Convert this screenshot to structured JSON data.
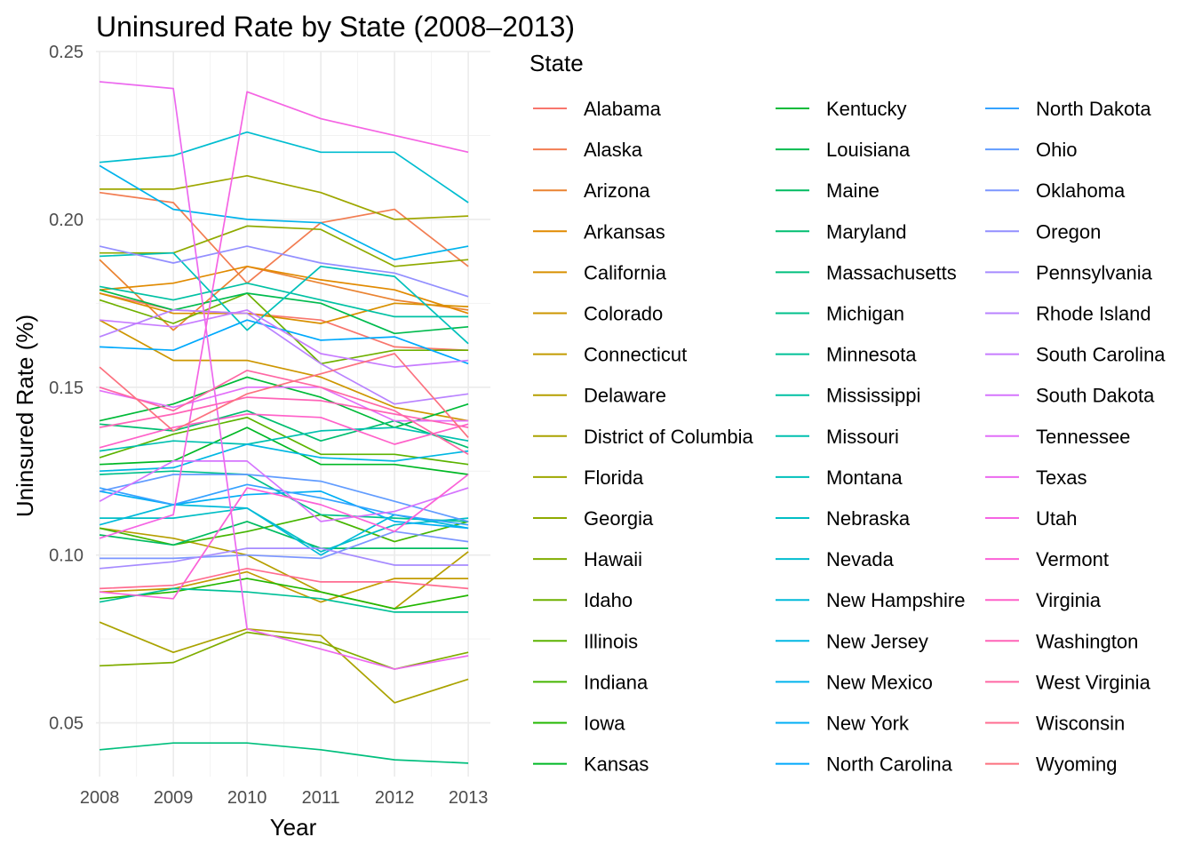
{
  "chart_data": {
    "type": "line",
    "title": "Uninsured Rate by State (2008–2013)",
    "xlabel": "Year",
    "ylabel": "Uninsured Rate (%)",
    "x": [
      2008,
      2009,
      2010,
      2011,
      2012,
      2013
    ],
    "x_ticks": [
      "2008",
      "2009",
      "2010",
      "2011",
      "2012",
      "2013"
    ],
    "y_ticks": [
      "0.05",
      "0.10",
      "0.15",
      "0.20",
      "0.25"
    ],
    "y_tick_values": [
      0.05,
      0.1,
      0.15,
      0.2,
      0.25
    ],
    "xlim": [
      2007.95,
      2013.3
    ],
    "ylim": [
      0.034,
      0.25
    ],
    "grid": true,
    "legend_title": "State",
    "legend_position": "right",
    "series": [
      {
        "name": "Alabama",
        "color": "#F8766D",
        "values": [
          0.178,
          0.173,
          0.172,
          0.17,
          0.162,
          0.161
        ]
      },
      {
        "name": "Alaska",
        "color": "#F27D52",
        "values": [
          0.208,
          0.205,
          0.181,
          0.199,
          0.203,
          0.186
        ]
      },
      {
        "name": "Arizona",
        "color": "#EA8331",
        "values": [
          0.188,
          0.167,
          0.186,
          0.181,
          0.176,
          0.173
        ]
      },
      {
        "name": "Arkansas",
        "color": "#E18A00",
        "values": [
          0.179,
          0.181,
          0.186,
          0.182,
          0.179,
          0.172
        ]
      },
      {
        "name": "California",
        "color": "#D89000",
        "values": [
          0.178,
          0.172,
          0.172,
          0.169,
          0.175,
          0.174
        ]
      },
      {
        "name": "Colorado",
        "color": "#CD9600",
        "values": [
          0.17,
          0.158,
          0.158,
          0.153,
          0.144,
          0.14
        ]
      },
      {
        "name": "Connecticut",
        "color": "#C29B00",
        "values": [
          0.089,
          0.09,
          0.095,
          0.086,
          0.093,
          0.093
        ]
      },
      {
        "name": "Delaware",
        "color": "#B69F00",
        "values": [
          0.108,
          0.105,
          0.1,
          0.089,
          0.084,
          0.101
        ]
      },
      {
        "name": "District of Columbia",
        "color": "#AAA300",
        "values": [
          0.08,
          0.071,
          0.078,
          0.076,
          0.056,
          0.063
        ]
      },
      {
        "name": "Florida",
        "color": "#9EA700",
        "values": [
          0.209,
          0.209,
          0.213,
          0.208,
          0.2,
          0.201
        ]
      },
      {
        "name": "Georgia",
        "color": "#8FAA00",
        "values": [
          0.19,
          0.19,
          0.198,
          0.197,
          0.186,
          0.188
        ]
      },
      {
        "name": "Hawaii",
        "color": "#80AD00",
        "values": [
          0.067,
          0.068,
          0.077,
          0.074,
          0.066,
          0.071
        ]
      },
      {
        "name": "Idaho",
        "color": "#6FB000",
        "values": [
          0.176,
          0.169,
          0.178,
          0.157,
          0.161,
          0.161
        ]
      },
      {
        "name": "Illinois",
        "color": "#5CB300",
        "values": [
          0.129,
          0.136,
          0.141,
          0.13,
          0.13,
          0.127
        ]
      },
      {
        "name": "Indiana",
        "color": "#45B500",
        "values": [
          0.108,
          0.103,
          0.107,
          0.112,
          0.104,
          0.11
        ]
      },
      {
        "name": "Iowa",
        "color": "#22B700",
        "values": [
          0.087,
          0.089,
          0.093,
          0.089,
          0.084,
          0.088
        ]
      },
      {
        "name": "Kansas",
        "color": "#00B825",
        "values": [
          0.127,
          0.128,
          0.138,
          0.127,
          0.127,
          0.124
        ]
      },
      {
        "name": "Kentucky",
        "color": "#00BA38",
        "values": [
          0.14,
          0.145,
          0.153,
          0.147,
          0.138,
          0.145
        ]
      },
      {
        "name": "Louisiana",
        "color": "#00BB4E",
        "values": [
          0.179,
          0.173,
          0.178,
          0.175,
          0.166,
          0.168
        ]
      },
      {
        "name": "Maine",
        "color": "#00BC61",
        "values": [
          0.106,
          0.103,
          0.11,
          0.102,
          0.102,
          0.102
        ]
      },
      {
        "name": "Maryland",
        "color": "#00BE70",
        "values": [
          0.139,
          0.137,
          0.143,
          0.134,
          0.14,
          0.132
        ]
      },
      {
        "name": "Massachusetts",
        "color": "#00BF7D",
        "values": [
          0.042,
          0.044,
          0.044,
          0.042,
          0.039,
          0.038
        ]
      },
      {
        "name": "Michigan",
        "color": "#00C08B",
        "values": [
          0.124,
          0.125,
          0.124,
          0.112,
          0.111,
          0.11
        ]
      },
      {
        "name": "Minnesota",
        "color": "#00C098",
        "values": [
          0.086,
          0.09,
          0.089,
          0.087,
          0.083,
          0.083
        ]
      },
      {
        "name": "Mississippi",
        "color": "#00C1A4",
        "values": [
          0.18,
          0.176,
          0.181,
          0.176,
          0.171,
          0.171
        ]
      },
      {
        "name": "Missouri",
        "color": "#00C0AF",
        "values": [
          0.131,
          0.134,
          0.133,
          0.137,
          0.138,
          0.134
        ]
      },
      {
        "name": "Montana",
        "color": "#00C0BB",
        "values": [
          0.189,
          0.19,
          0.167,
          0.186,
          0.183,
          0.163
        ]
      },
      {
        "name": "Nebraska",
        "color": "#00BEC5",
        "values": [
          0.111,
          0.111,
          0.114,
          0.101,
          0.109,
          0.111
        ]
      },
      {
        "name": "Nevada",
        "color": "#00BDD0",
        "values": [
          0.217,
          0.219,
          0.226,
          0.22,
          0.22,
          0.205
        ]
      },
      {
        "name": "New Hampshire",
        "color": "#00BADA",
        "values": [
          0.109,
          0.115,
          0.114,
          0.1,
          0.112,
          0.108
        ]
      },
      {
        "name": "New Jersey",
        "color": "#00B7E3",
        "values": [
          0.125,
          0.126,
          0.133,
          0.129,
          0.128,
          0.131
        ]
      },
      {
        "name": "New Mexico",
        "color": "#00B3EC",
        "values": [
          0.216,
          0.203,
          0.2,
          0.199,
          0.188,
          0.192
        ]
      },
      {
        "name": "New York",
        "color": "#00AEF5",
        "values": [
          0.119,
          0.115,
          0.118,
          0.119,
          0.11,
          0.108
        ]
      },
      {
        "name": "North Carolina",
        "color": "#00A9FC",
        "values": [
          0.162,
          0.161,
          0.17,
          0.164,
          0.165,
          0.157
        ]
      },
      {
        "name": "North Dakota",
        "color": "#35A2FF",
        "values": [
          0.12,
          0.115,
          0.121,
          0.117,
          0.112,
          0.109
        ]
      },
      {
        "name": "Ohio",
        "color": "#619CFF",
        "values": [
          0.119,
          0.124,
          0.124,
          0.122,
          0.116,
          0.11
        ]
      },
      {
        "name": "Oklahoma",
        "color": "#7C96FF",
        "values": [
          0.099,
          0.099,
          0.1,
          0.099,
          0.107,
          0.104
        ]
      },
      {
        "name": "Oregon",
        "color": "#938FFF",
        "values": [
          0.192,
          0.187,
          0.192,
          0.187,
          0.184,
          0.177
        ]
      },
      {
        "name": "Pennsylvania",
        "color": "#A68BFF",
        "values": [
          0.096,
          0.098,
          0.102,
          0.102,
          0.097,
          0.097
        ]
      },
      {
        "name": "Rhode Island",
        "color": "#B983FF",
        "values": [
          0.165,
          0.173,
          0.172,
          0.157,
          0.145,
          0.148
        ]
      },
      {
        "name": "South Carolina",
        "color": "#C77CFF",
        "values": [
          0.17,
          0.168,
          0.173,
          0.16,
          0.156,
          0.158
        ]
      },
      {
        "name": "South Dakota",
        "color": "#D575FE",
        "values": [
          0.116,
          0.128,
          0.128,
          0.11,
          0.113,
          0.12
        ]
      },
      {
        "name": "Tennessee",
        "color": "#E26FF9",
        "values": [
          0.149,
          0.144,
          0.15,
          0.15,
          0.14,
          0.14
        ]
      },
      {
        "name": "Texas",
        "color": "#EC69EF",
        "values": [
          0.241,
          0.239,
          0.078,
          0.072,
          0.066,
          0.07
        ]
      },
      {
        "name": "Utah",
        "color": "#F564E3",
        "values": [
          0.105,
          0.112,
          0.238,
          0.23,
          0.225,
          0.22
        ]
      },
      {
        "name": "Vermont",
        "color": "#FB61D7",
        "values": [
          0.089,
          0.087,
          0.12,
          0.115,
          0.107,
          0.124
        ]
      },
      {
        "name": "Virginia",
        "color": "#FF61C9",
        "values": [
          0.132,
          0.138,
          0.142,
          0.141,
          0.133,
          0.139
        ]
      },
      {
        "name": "Washington",
        "color": "#FF63B7",
        "values": [
          0.138,
          0.142,
          0.147,
          0.146,
          0.142,
          0.138
        ]
      },
      {
        "name": "West Virginia",
        "color": "#FF67A4",
        "values": [
          0.15,
          0.143,
          0.155,
          0.15,
          0.143,
          0.13
        ]
      },
      {
        "name": "Wisconsin",
        "color": "#FF6C90",
        "values": [
          0.09,
          0.091,
          0.096,
          0.092,
          0.092,
          0.09
        ]
      },
      {
        "name": "Wyoming",
        "color": "#FC717F",
        "values": [
          0.156,
          0.137,
          0.148,
          0.154,
          0.16,
          0.135
        ]
      }
    ]
  }
}
